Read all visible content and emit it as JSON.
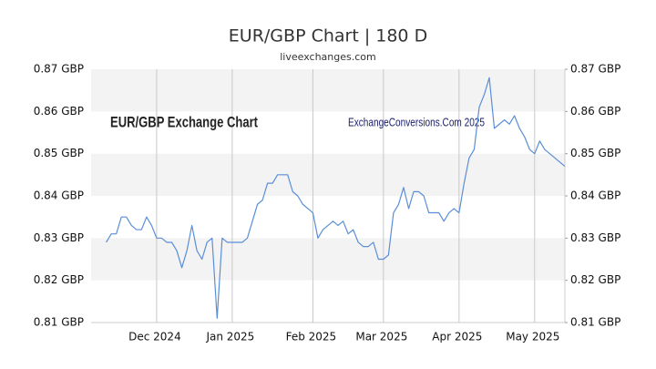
{
  "chart_data": {
    "type": "line",
    "title": "EUR/GBP Chart | 180 D",
    "subtitle": "liveexchanges.com",
    "annotations": [
      "EUR/GBP Exchange Chart",
      "ExchangeConversions.Com 2025"
    ],
    "categories": [
      null,
      null,
      null,
      null,
      null,
      null,
      null,
      null,
      null,
      null,
      null,
      null,
      null,
      "Dec 2024",
      null,
      null,
      null,
      null,
      null,
      null,
      null,
      null,
      null,
      null,
      null,
      null,
      null,
      null,
      "Jan 2025",
      null,
      null,
      null,
      null,
      null,
      null,
      null,
      null,
      null,
      null,
      null,
      null,
      null,
      null,
      null,
      "Feb 2025",
      null,
      null,
      null,
      null,
      null,
      null,
      null,
      null,
      null,
      null,
      null,
      null,
      null,
      "Mar 2025",
      null,
      null,
      null,
      null,
      null,
      null,
      null,
      null,
      null,
      null,
      null,
      null,
      null,
      null,
      "Apr 2025",
      null,
      null,
      null,
      null,
      null,
      null,
      null,
      null,
      null,
      null,
      null,
      null,
      null,
      null,
      "May 2025",
      null,
      null,
      null,
      null,
      null,
      null
    ],
    "series": [
      {
        "name": "EUR/GBP",
        "color": "#5a8ed8",
        "values": [
          null,
          null,
          null,
          0.829,
          0.831,
          0.831,
          0.835,
          0.835,
          0.833,
          0.832,
          0.832,
          0.835,
          0.833,
          0.83,
          0.83,
          0.829,
          0.829,
          0.827,
          0.823,
          0.827,
          0.833,
          0.827,
          0.825,
          0.829,
          0.83,
          0.811,
          0.83,
          0.829,
          0.829,
          0.829,
          0.829,
          0.83,
          0.834,
          0.838,
          0.839,
          0.843,
          0.843,
          0.845,
          0.845,
          0.845,
          0.841,
          0.84,
          0.838,
          0.837,
          0.836,
          0.83,
          0.832,
          0.833,
          0.834,
          0.833,
          0.834,
          0.831,
          0.832,
          0.829,
          0.828,
          0.828,
          0.829,
          0.825,
          0.825,
          0.826,
          0.836,
          0.838,
          0.842,
          0.837,
          0.841,
          0.841,
          0.84,
          0.836,
          0.836,
          0.836,
          0.834,
          0.836,
          0.837,
          0.836,
          0.843,
          0.849,
          0.851,
          0.861,
          0.864,
          0.868,
          0.856,
          0.857,
          0.858,
          0.857,
          0.859,
          0.856,
          0.854,
          0.851,
          0.85,
          0.853,
          0.851,
          0.85,
          0.849,
          0.848,
          0.847
        ]
      }
    ],
    "ylim": [
      0.81,
      0.87
    ],
    "yticks": [
      {
        "value": 0.81,
        "label": "0.81 GBP"
      },
      {
        "value": 0.82,
        "label": "0.82 GBP"
      },
      {
        "value": 0.83,
        "label": "0.83 GBP"
      },
      {
        "value": 0.84,
        "label": "0.84 GBP"
      },
      {
        "value": 0.85,
        "label": "0.85 GBP"
      },
      {
        "value": 0.86,
        "label": "0.86 GBP"
      },
      {
        "value": 0.87,
        "label": "0.87 GBP"
      }
    ],
    "grid": true
  }
}
